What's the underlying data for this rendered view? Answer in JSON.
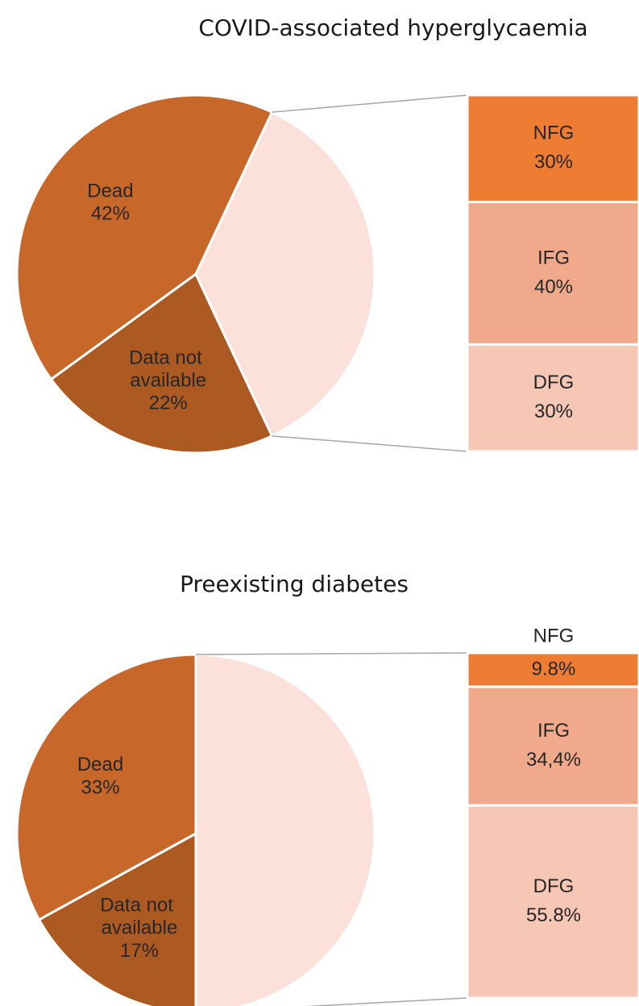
{
  "chart_data": [
    {
      "type": "bar_of_pie",
      "title": "COVID-associated hyperglycaemia",
      "categories": [
        "Dead",
        "Data not available",
        null
      ],
      "values": [
        42,
        22,
        36
      ],
      "value_labels": [
        "42%",
        "22%",
        null
      ],
      "colors": [
        "#c8672a",
        "#ad5a22",
        "#fbe1d9"
      ],
      "breakdown": {
        "categories": [
          "NFG",
          "IFG",
          "DFG"
        ],
        "values": [
          30,
          40,
          30
        ],
        "value_labels": [
          "30%",
          "40%",
          "30%"
        ],
        "colors": [
          "#ee7d33",
          "#f0a98b",
          "#f7c7b5"
        ]
      }
    },
    {
      "type": "bar_of_pie",
      "title": "Preexisting diabetes",
      "categories": [
        "Dead",
        "Data not available",
        null
      ],
      "values": [
        33,
        17,
        50
      ],
      "value_labels": [
        "33%",
        "17%",
        null
      ],
      "colors": [
        "#c8672a",
        "#ad5a22",
        "#fbe1d9"
      ],
      "breakdown": {
        "categories": [
          "NFG",
          "IFG",
          "DFG"
        ],
        "values": [
          9.8,
          34.4,
          55.8
        ],
        "value_labels": [
          "9.8%",
          "34,4%",
          "55.8%"
        ],
        "colors": [
          "#ee7d33",
          "#f0a98b",
          "#f7c7b5"
        ]
      }
    }
  ]
}
